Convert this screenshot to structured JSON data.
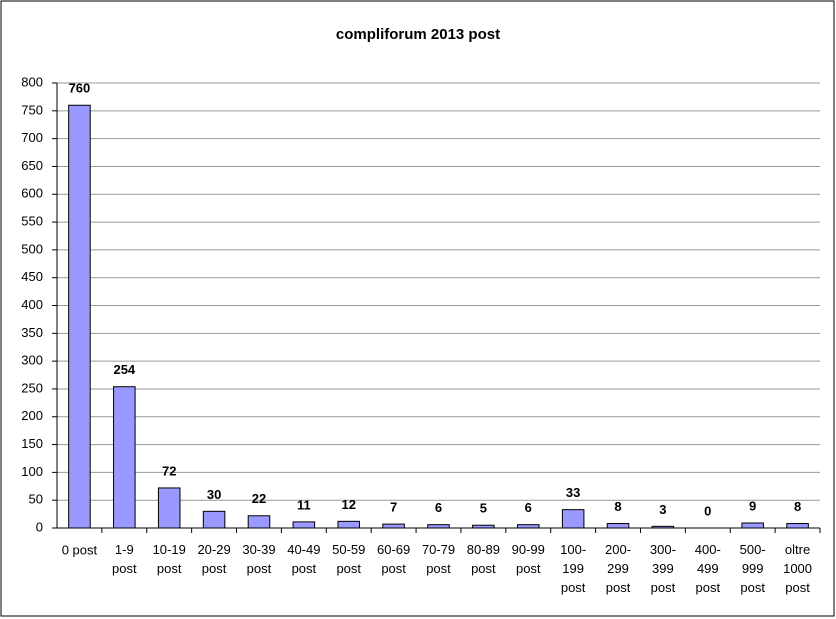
{
  "chart_data": {
    "type": "bar",
    "title": "compliforum 2013 post",
    "categories": [
      "0 post",
      "1-9\npost",
      "10-19\npost",
      "20-29\npost",
      "30-39\npost",
      "40-49\npost",
      "50-59\npost",
      "60-69\npost",
      "70-79\npost",
      "80-89\npost",
      "90-99\npost",
      "100-\n199\npost",
      "200-\n299\npost",
      "300-\n399\npost",
      "400-\n499\npost",
      "500-\n999\npost",
      "oltre\n1000\npost"
    ],
    "values": [
      760,
      254,
      72,
      30,
      22,
      11,
      12,
      7,
      6,
      5,
      6,
      33,
      8,
      3,
      0,
      9,
      8
    ],
    "color": "#9999ff",
    "ylim": [
      0,
      800
    ],
    "yticks": [
      0,
      50,
      100,
      150,
      200,
      250,
      300,
      350,
      400,
      450,
      500,
      550,
      600,
      650,
      700,
      750,
      800
    ],
    "grid": true
  }
}
